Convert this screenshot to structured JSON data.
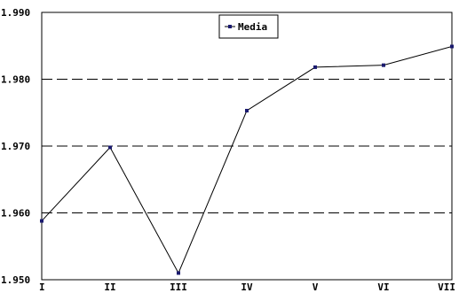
{
  "chart_data": {
    "type": "line",
    "categories": [
      "I",
      "II",
      "III",
      "IV",
      "V",
      "VI",
      "VII"
    ],
    "series": [
      {
        "name": "Media",
        "values": [
          1.9588,
          1.9698,
          1.951,
          1.9753,
          1.9818,
          1.9821,
          1.9849
        ]
      }
    ],
    "ylim": [
      1.95,
      1.99
    ],
    "yticks": [
      1.95,
      1.96,
      1.97,
      1.98,
      1.99
    ],
    "ytick_labels": [
      "1.950",
      "1.960",
      "1.970",
      "1.980",
      "1.990"
    ],
    "grid": "dashed horizontal at 1.960, 1.970, 1.980",
    "legend_position": "top-center",
    "line_color": "#000000",
    "marker_color": "#1a1a6e"
  }
}
